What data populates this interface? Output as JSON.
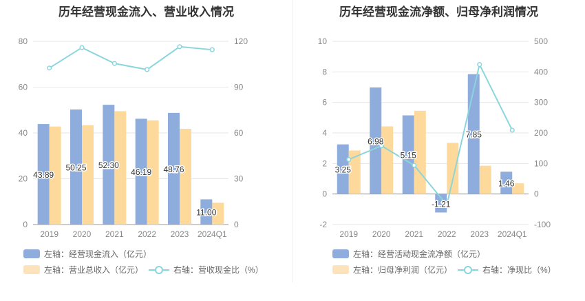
{
  "chart_data": [
    {
      "type": "bar",
      "title": "历年经营现金流入、营业收入情况",
      "categories": [
        "2019",
        "2020",
        "2021",
        "2022",
        "2023",
        "2024Q1"
      ],
      "left_axis": {
        "min": 0,
        "max": 80,
        "ticks": [
          0,
          20,
          40,
          60,
          80
        ]
      },
      "right_axis": {
        "min": 0,
        "max": 120,
        "ticks": [
          0,
          30,
          60,
          90,
          120
        ]
      },
      "series": [
        {
          "name": "左轴：经营现金流入（亿元）",
          "kind": "bar",
          "axis": "left",
          "color": "#8eacdc",
          "values": [
            43.89,
            50.25,
            52.3,
            46.19,
            48.76,
            11.0
          ],
          "labels": [
            "43.89",
            "50.25",
            "52.30",
            "46.19",
            "48.76",
            "11.00"
          ]
        },
        {
          "name": "左轴：营业总收入（亿元）",
          "kind": "bar",
          "axis": "left",
          "color": "#fdd99c",
          "values": [
            42.8,
            43.3,
            49.5,
            45.5,
            41.8,
            9.5
          ]
        },
        {
          "name": "右轴：营收现金比（%）",
          "kind": "line",
          "axis": "right",
          "color": "#8bd5dc",
          "values": [
            102.5,
            115.9,
            105.5,
            101.5,
            116.5,
            114.5
          ]
        }
      ]
    },
    {
      "type": "bar",
      "title": "历年经营现金流净额、归母净利润情况",
      "categories": [
        "2019",
        "2020",
        "2021",
        "2022",
        "2023",
        "2024Q1"
      ],
      "left_axis": {
        "min": -2,
        "max": 10,
        "ticks": [
          -2,
          0,
          2,
          4,
          6,
          8,
          10
        ]
      },
      "right_axis": {
        "min": -100,
        "max": 500,
        "ticks": [
          -100,
          0,
          100,
          200,
          300,
          400,
          500
        ]
      },
      "series": [
        {
          "name": "左轴：经营活动现金流净额（亿元）",
          "kind": "bar",
          "axis": "left",
          "color": "#8eacdc",
          "values": [
            3.25,
            6.98,
            5.15,
            -1.21,
            7.85,
            1.46
          ],
          "labels": [
            "3.25",
            "6.98",
            "5.15",
            "-1.21",
            "7.85",
            "1.46"
          ]
        },
        {
          "name": "左轴：归母净利润（亿元）",
          "kind": "bar",
          "axis": "left",
          "color": "#fdd99c",
          "values": [
            2.85,
            4.43,
            5.45,
            3.35,
            1.85,
            0.7
          ]
        },
        {
          "name": "右轴：净现比（%）",
          "kind": "line",
          "axis": "right",
          "color": "#8bd5dc",
          "values": [
            113,
            158,
            94,
            -36,
            424,
            209
          ]
        }
      ]
    }
  ]
}
